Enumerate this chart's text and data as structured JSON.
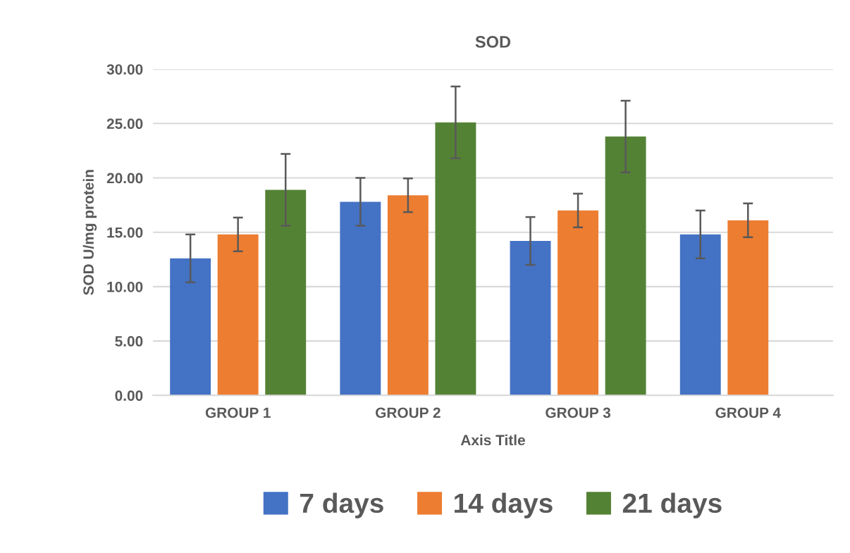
{
  "chart_data": {
    "type": "bar",
    "title": "SOD",
    "xlabel": "Axis Title",
    "ylabel": "SOD U/mg protein",
    "categories": [
      "GROUP 1",
      "GROUP 2",
      "GROUP 3",
      "GROUP 4"
    ],
    "series": [
      {
        "name": "7 days",
        "color": "#4472c4",
        "values": [
          12.6,
          17.8,
          14.2,
          14.8
        ],
        "errors": [
          2.2,
          2.2,
          2.2,
          2.2
        ]
      },
      {
        "name": "14 days",
        "color": "#ed7d31",
        "values": [
          14.8,
          18.4,
          17.0,
          16.1
        ],
        "errors": [
          1.55,
          1.55,
          1.55,
          1.55
        ]
      },
      {
        "name": "21 days",
        "color": "#548235",
        "values": [
          18.9,
          25.1,
          23.8,
          null
        ],
        "errors": [
          3.3,
          3.3,
          3.3,
          null
        ]
      }
    ],
    "ylim": [
      0,
      30
    ],
    "yticks": [
      {
        "value": 0,
        "label": "0.00"
      },
      {
        "value": 5,
        "label": "5.00"
      },
      {
        "value": 10,
        "label": "10.00"
      },
      {
        "value": 15,
        "label": "15.00"
      },
      {
        "value": 20,
        "label": "20.00"
      },
      {
        "value": 25,
        "label": "25.00"
      },
      {
        "value": 30,
        "label": "30.00"
      }
    ],
    "grid": "y",
    "legend": "bottom"
  }
}
